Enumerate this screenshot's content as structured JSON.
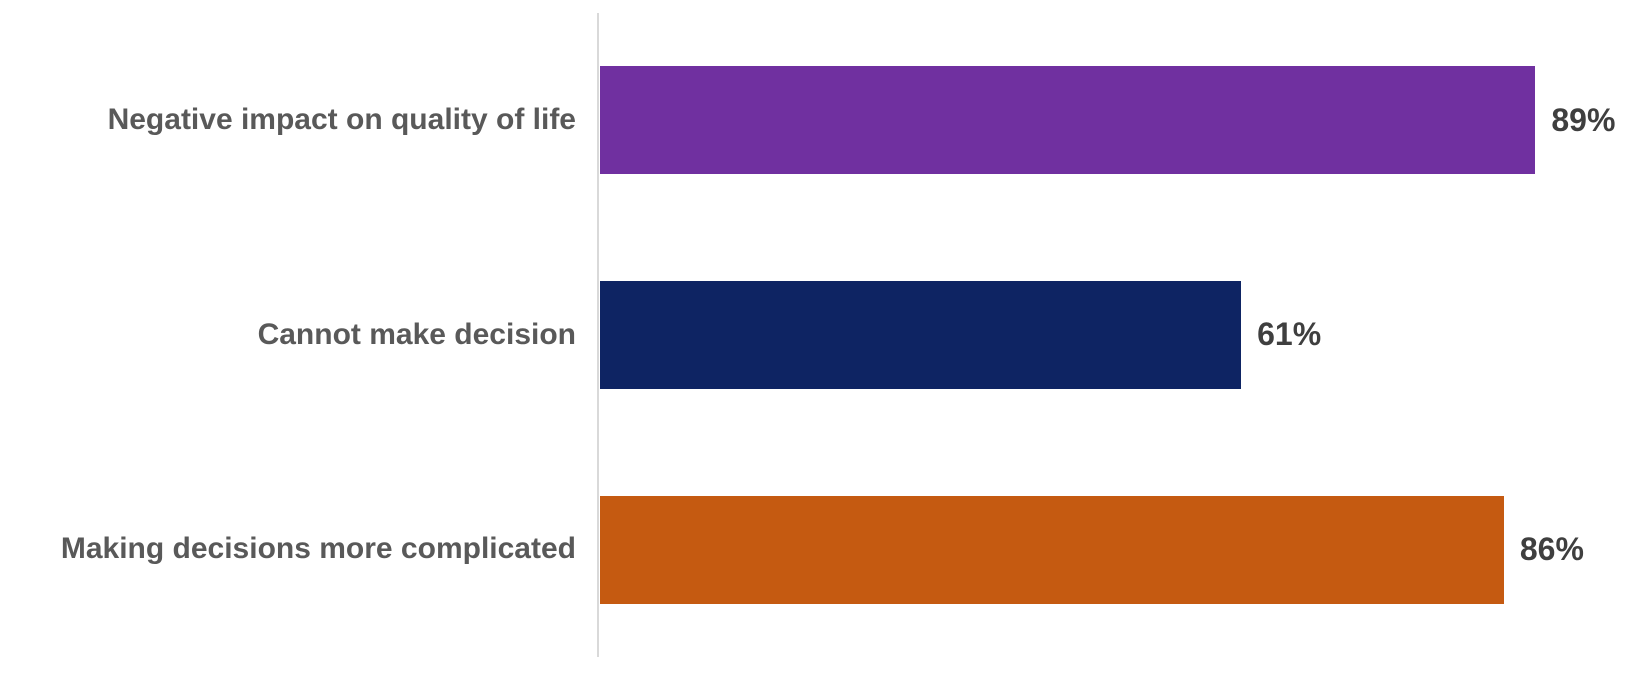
{
  "chart_data": {
    "type": "bar",
    "orientation": "horizontal",
    "title": "",
    "categories": [
      "Negative impact on quality of life",
      "Cannot make decision",
      "Making decisions more complicated"
    ],
    "values": [
      89,
      61,
      86
    ],
    "value_labels": [
      "89%",
      "61%",
      "86%"
    ],
    "bar_colors": [
      "#7030A0",
      "#0E2463",
      "#C55A11"
    ],
    "xlim": [
      0,
      100
    ],
    "grid": false,
    "legend": "none",
    "axis_line_color": "#D9D9D9",
    "category_label_color": "#595959",
    "value_label_color": "#3F3F3F",
    "background_color": "#FFFFFF"
  }
}
